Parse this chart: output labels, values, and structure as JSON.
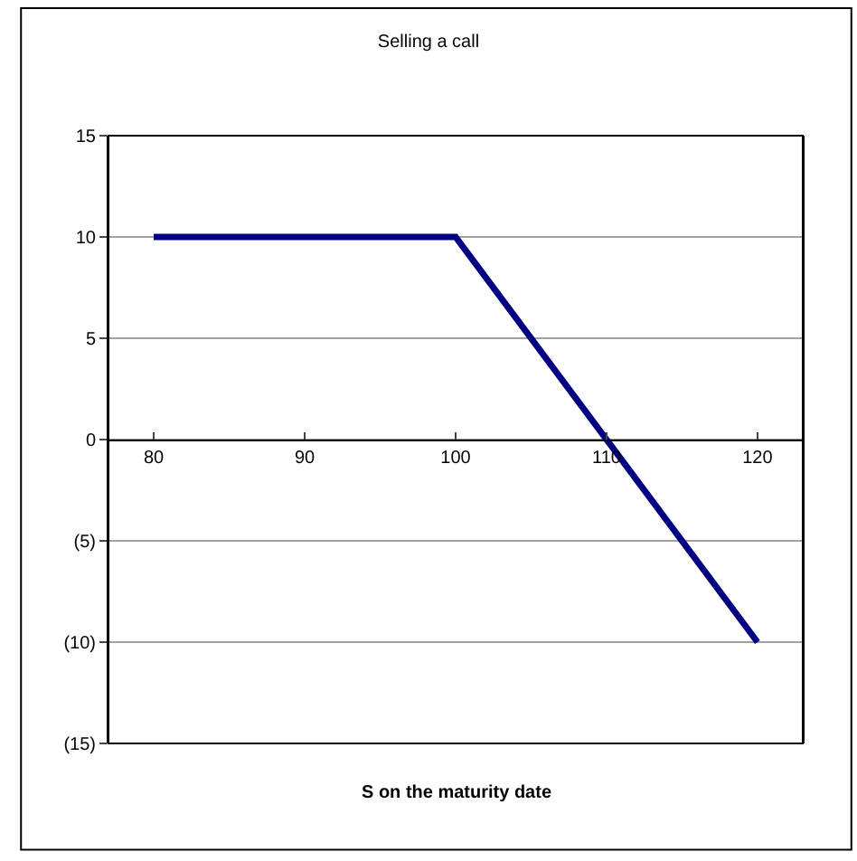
{
  "chart_data": {
    "type": "line",
    "title": "Selling a call",
    "xlabel": "S on the maturity date",
    "x": [
      80,
      100,
      120
    ],
    "series": [
      {
        "color": "#000080",
        "values": [
          10,
          10,
          -10
        ]
      }
    ],
    "xlim": [
      77,
      123
    ],
    "xticks": [
      80,
      90,
      100,
      110,
      120
    ],
    "ylim": [
      -15,
      15
    ],
    "yticks": [
      {
        "value": -15,
        "label": "(15)"
      },
      {
        "value": -10,
        "label": "(10)"
      },
      {
        "value": -5,
        "label": "(5)"
      },
      0,
      5,
      10,
      15
    ],
    "grid": "y",
    "legend": false,
    "marker": "none",
    "line_style": "solid"
  }
}
